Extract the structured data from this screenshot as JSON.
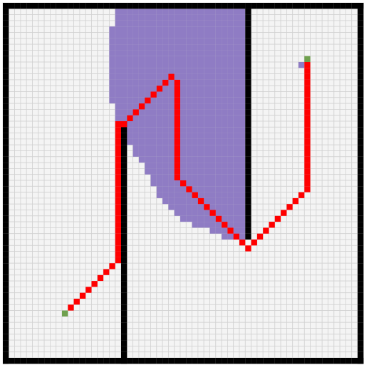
{
  "grid": {
    "columns": 61,
    "rows": 61,
    "colors": {
      "background": "#f4f4f4",
      "grid_line": "#d2d2d2",
      "wall": "#000000",
      "explored": "#8f7cc4",
      "path": "#ff0000",
      "endpoint": "#6fa04e"
    }
  },
  "walls": [
    {
      "name": "border-top",
      "cells": [
        [
          0,
          0
        ],
        [
          60,
          0
        ]
      ]
    },
    {
      "name": "border-bottom",
      "cells": [
        [
          0,
          60
        ],
        [
          60,
          60
        ]
      ]
    },
    {
      "name": "border-left",
      "cells": [
        [
          0,
          0
        ],
        [
          0,
          60
        ]
      ]
    },
    {
      "name": "border-right",
      "cells": [
        [
          60,
          0
        ],
        [
          60,
          60
        ]
      ]
    },
    {
      "name": "inner-wall-left",
      "cells": [
        [
          20,
          20
        ],
        [
          20,
          60
        ]
      ]
    },
    {
      "name": "inner-wall-right",
      "cells": [
        [
          41,
          0
        ],
        [
          41,
          39
        ]
      ]
    }
  ],
  "explored_rows": [
    {
      "row": 1,
      "from": 19,
      "to": 40
    },
    {
      "row": 2,
      "from": 19,
      "to": 40
    },
    {
      "row": 3,
      "from": 19,
      "to": 40
    },
    {
      "row": 4,
      "from": 18,
      "to": 40
    },
    {
      "row": 5,
      "from": 18,
      "to": 40
    },
    {
      "row": 6,
      "from": 18,
      "to": 40
    },
    {
      "row": 7,
      "from": 18,
      "to": 40
    },
    {
      "row": 8,
      "from": 18,
      "to": 40
    },
    {
      "row": 9,
      "from": 18,
      "to": 40
    },
    {
      "row": 10,
      "from": 18,
      "to": 40
    },
    {
      "row": 11,
      "from": 18,
      "to": 40
    },
    {
      "row": 12,
      "from": 18,
      "to": 40
    },
    {
      "row": 13,
      "from": 18,
      "to": 40
    },
    {
      "row": 14,
      "from": 18,
      "to": 40
    },
    {
      "row": 15,
      "from": 18,
      "to": 40
    },
    {
      "row": 16,
      "from": 18,
      "to": 40
    },
    {
      "row": 17,
      "from": 19,
      "to": 40
    },
    {
      "row": 18,
      "from": 19,
      "to": 40
    },
    {
      "row": 19,
      "from": 19,
      "to": 40
    },
    {
      "row": 20,
      "from": 21,
      "to": 40
    },
    {
      "row": 21,
      "from": 21,
      "to": 40
    },
    {
      "row": 22,
      "from": 21,
      "to": 40
    },
    {
      "row": 23,
      "from": 21,
      "to": 40
    },
    {
      "row": 24,
      "from": 22,
      "to": 40
    },
    {
      "row": 25,
      "from": 22,
      "to": 40
    },
    {
      "row": 26,
      "from": 23,
      "to": 40
    },
    {
      "row": 27,
      "from": 24,
      "to": 40
    },
    {
      "row": 28,
      "from": 24,
      "to": 40
    },
    {
      "row": 29,
      "from": 25,
      "to": 40
    },
    {
      "row": 30,
      "from": 25,
      "to": 40
    },
    {
      "row": 31,
      "from": 26,
      "to": 40
    },
    {
      "row": 32,
      "from": 26,
      "to": 40
    },
    {
      "row": 33,
      "from": 27,
      "to": 40
    },
    {
      "row": 34,
      "from": 28,
      "to": 40
    },
    {
      "row": 35,
      "from": 29,
      "to": 40
    },
    {
      "row": 36,
      "from": 30,
      "to": 40
    },
    {
      "row": 37,
      "from": 32,
      "to": 40
    },
    {
      "row": 38,
      "from": 35,
      "to": 40
    },
    {
      "row": 39,
      "from": 37,
      "to": 40
    },
    {
      "row": 10,
      "from": 50,
      "to": 50
    }
  ],
  "path": [
    [
      11,
      51
    ],
    [
      12,
      50
    ],
    [
      13,
      49
    ],
    [
      14,
      48
    ],
    [
      15,
      47
    ],
    [
      16,
      46
    ],
    [
      17,
      45
    ],
    [
      18,
      44
    ],
    [
      19,
      43
    ],
    [
      19,
      42
    ],
    [
      19,
      41
    ],
    [
      19,
      40
    ],
    [
      19,
      39
    ],
    [
      19,
      38
    ],
    [
      19,
      37
    ],
    [
      19,
      36
    ],
    [
      19,
      35
    ],
    [
      19,
      34
    ],
    [
      19,
      33
    ],
    [
      19,
      32
    ],
    [
      19,
      31
    ],
    [
      19,
      30
    ],
    [
      19,
      29
    ],
    [
      19,
      28
    ],
    [
      19,
      27
    ],
    [
      19,
      26
    ],
    [
      19,
      25
    ],
    [
      19,
      24
    ],
    [
      19,
      23
    ],
    [
      19,
      22
    ],
    [
      19,
      21
    ],
    [
      19,
      20
    ],
    [
      20,
      20
    ],
    [
      21,
      19
    ],
    [
      22,
      18
    ],
    [
      23,
      17
    ],
    [
      24,
      16
    ],
    [
      25,
      15
    ],
    [
      26,
      14
    ],
    [
      27,
      13
    ],
    [
      28,
      12
    ],
    [
      29,
      13
    ],
    [
      29,
      14
    ],
    [
      29,
      15
    ],
    [
      29,
      16
    ],
    [
      29,
      17
    ],
    [
      29,
      18
    ],
    [
      29,
      19
    ],
    [
      29,
      20
    ],
    [
      29,
      21
    ],
    [
      29,
      22
    ],
    [
      29,
      23
    ],
    [
      29,
      24
    ],
    [
      29,
      25
    ],
    [
      29,
      26
    ],
    [
      29,
      27
    ],
    [
      29,
      28
    ],
    [
      29,
      29
    ],
    [
      30,
      30
    ],
    [
      31,
      31
    ],
    [
      32,
      32
    ],
    [
      33,
      33
    ],
    [
      34,
      34
    ],
    [
      35,
      35
    ],
    [
      36,
      36
    ],
    [
      37,
      37
    ],
    [
      38,
      38
    ],
    [
      39,
      39
    ],
    [
      40,
      40
    ],
    [
      41,
      41
    ],
    [
      42,
      40
    ],
    [
      43,
      39
    ],
    [
      44,
      38
    ],
    [
      45,
      37
    ],
    [
      46,
      36
    ],
    [
      47,
      35
    ],
    [
      48,
      34
    ],
    [
      49,
      33
    ],
    [
      50,
      32
    ],
    [
      51,
      31
    ],
    [
      51,
      30
    ],
    [
      51,
      29
    ],
    [
      51,
      28
    ],
    [
      51,
      27
    ],
    [
      51,
      26
    ],
    [
      51,
      25
    ],
    [
      51,
      24
    ],
    [
      51,
      23
    ],
    [
      51,
      22
    ],
    [
      51,
      21
    ],
    [
      51,
      20
    ],
    [
      51,
      19
    ],
    [
      51,
      18
    ],
    [
      51,
      17
    ],
    [
      51,
      16
    ],
    [
      51,
      15
    ],
    [
      51,
      14
    ],
    [
      51,
      13
    ],
    [
      51,
      12
    ],
    [
      51,
      11
    ],
    [
      51,
      10
    ]
  ],
  "endpoints": [
    {
      "name": "start-marker",
      "cell": [
        10,
        52
      ]
    },
    {
      "name": "goal-marker",
      "cell": [
        51,
        9
      ]
    }
  ]
}
